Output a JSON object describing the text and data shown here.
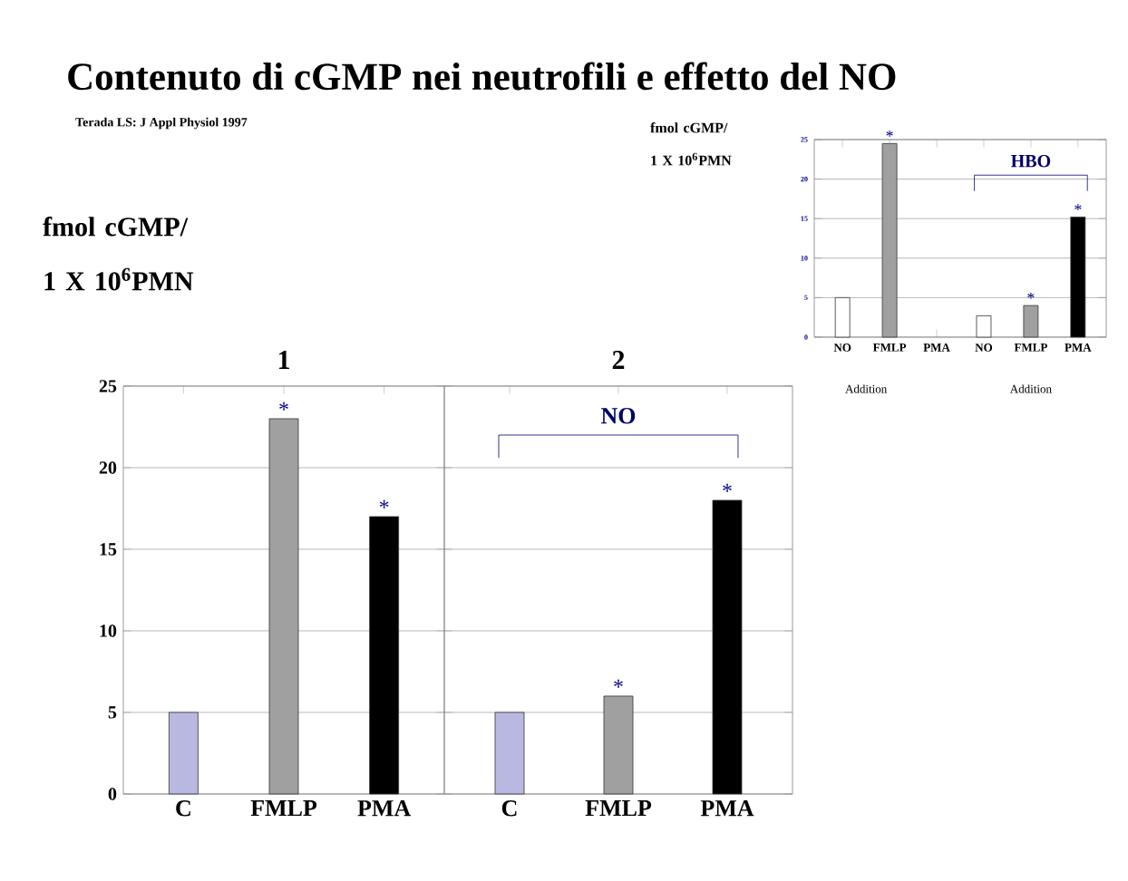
{
  "chart_data": [
    {
      "type": "other",
      "title": "Contenuto di cGMP nei neutrofili e effetto del NO",
      "annotations": [
        "Terada LS: J Appl Physiol 1997"
      ]
    },
    {
      "type": "bar",
      "title": "1",
      "ylabel": "fmol cGMP/ 1 X 10$^{6}$PMN",
      "categories": [
        "C",
        "FMLP",
        "PMA"
      ],
      "values": [
        5,
        23,
        17
      ],
      "colors": [
        "#b8b8e0",
        "#a0a0a0",
        "#000000"
      ],
      "value_labels": [
        null,
        "*",
        "*"
      ],
      "ylim": [
        0,
        25
      ],
      "yticks": [
        0,
        5,
        10,
        15,
        20,
        25
      ],
      "grid": "y"
    },
    {
      "type": "bar",
      "title": "2",
      "categories": [
        "C",
        "FMLP",
        "PMA"
      ],
      "values": [
        5,
        6,
        18
      ],
      "colors": [
        "#b8b8e0",
        "#a0a0a0",
        "#000000"
      ],
      "value_labels": [
        null,
        "*",
        "*"
      ],
      "ylim": [
        0,
        25
      ],
      "yticks": [
        0,
        5,
        10,
        15,
        20,
        25
      ],
      "grid": "y",
      "tick_labels": "x",
      "annotations": [
        "NO"
      ]
    },
    {
      "type": "bar",
      "ylabel": "fmol cGMP/ 1 X 10$^{6}$PMN",
      "categories": [
        "NO",
        "FMLP",
        "PMA",
        "NO",
        "FMLP",
        "PMA"
      ],
      "values": [
        5,
        24.5,
        null,
        2.7,
        4,
        15.2
      ],
      "colors": [
        "#ffffff",
        "#a0a0a0",
        "#000000",
        "#ffffff",
        "#a0a0a0",
        "#000000"
      ],
      "value_labels": [
        null,
        "*",
        null,
        null,
        "*",
        "*"
      ],
      "ylim": [
        0,
        25
      ],
      "yticks": [
        0,
        5,
        10,
        15,
        20,
        25
      ],
      "grid": "y",
      "annotations": [
        "HBO",
        "Addition",
        "Addition"
      ]
    }
  ]
}
